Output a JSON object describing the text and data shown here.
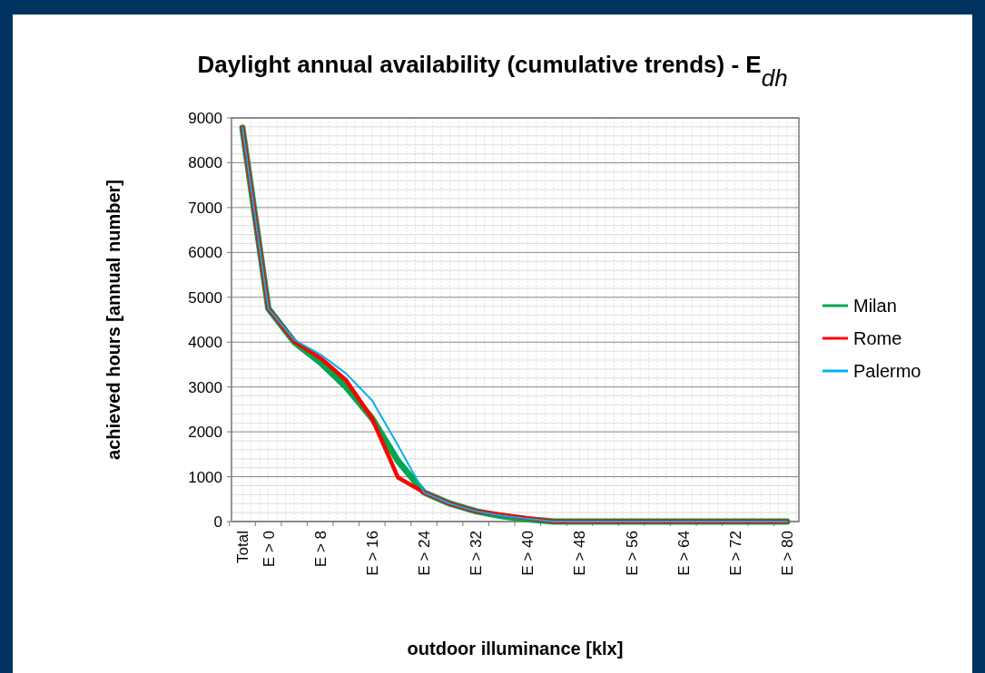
{
  "chart_data": {
    "type": "line",
    "title": "Daylight annual availability (cumulative trends) - E$_{dh}$",
    "xlabel": "outdoor illuminance [klx]",
    "ylabel": "achieved hours [annual number]",
    "categories": [
      "Total",
      "E > 0",
      null,
      "E > 8",
      null,
      "E > 16",
      null,
      "E > 24",
      null,
      "E > 32",
      null,
      "E > 40",
      null,
      "E > 48",
      null,
      "E > 56",
      null,
      "E > 64",
      null,
      "E > 72",
      null,
      "E > 80"
    ],
    "series": [
      {
        "name": "Milan",
        "color": "#00a651",
        "values": [
          8780,
          4750,
          4000,
          3550,
          3000,
          2300,
          1350,
          650,
          400,
          230,
          120,
          50,
          0,
          0,
          0,
          0,
          0,
          0,
          0,
          0,
          0,
          0
        ]
      },
      {
        "name": "Rome",
        "color": "#ff0000",
        "values": [
          8780,
          4750,
          4020,
          3650,
          3150,
          2300,
          980,
          650,
          400,
          230,
          150,
          70,
          0,
          0,
          0,
          0,
          0,
          0,
          0,
          0,
          0,
          0
        ]
      },
      {
        "name": "Palermo",
        "color": "#00b0f0",
        "values": [
          8780,
          4750,
          4050,
          3730,
          3300,
          2700,
          1700,
          650,
          400,
          230,
          130,
          60,
          0,
          0,
          0,
          0,
          0,
          0,
          0,
          0,
          0,
          0
        ]
      }
    ],
    "ylim": [
      0,
      9000
    ],
    "yticks": [
      0,
      1000,
      2000,
      3000,
      4000,
      5000,
      6000,
      7000,
      8000,
      9000
    ],
    "grid": true,
    "legend": "right",
    "marker": "none",
    "line_style": "solid"
  }
}
